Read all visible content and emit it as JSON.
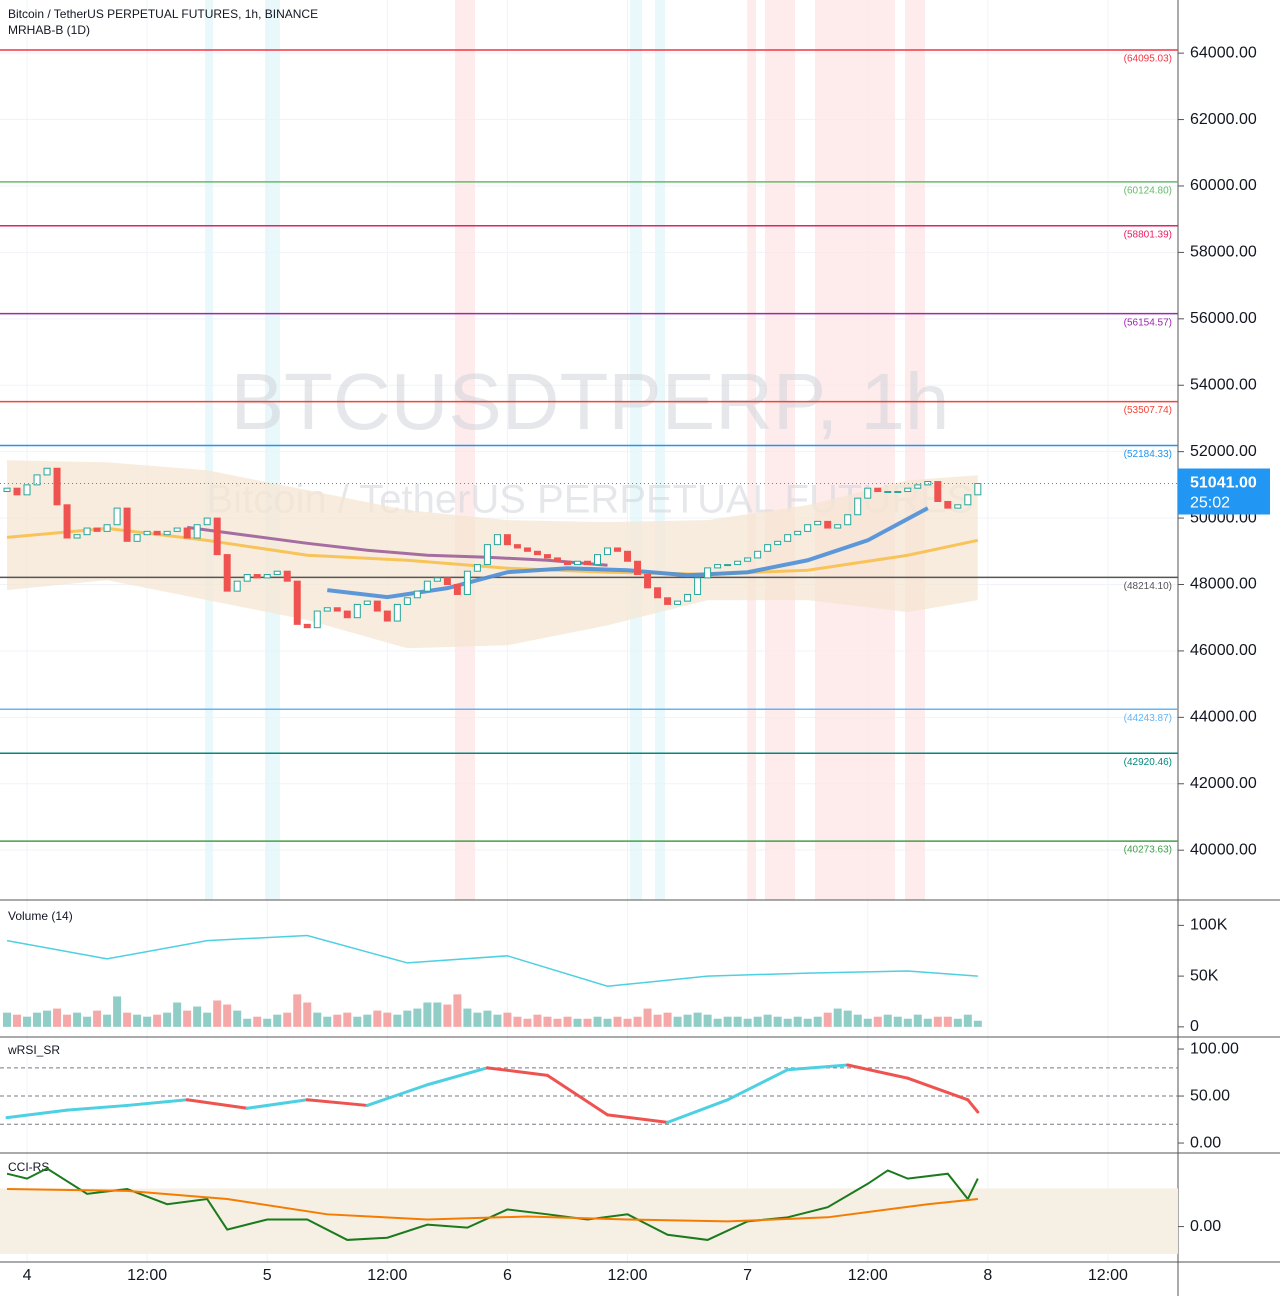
{
  "chart_data": [
    {
      "type": "candlestick",
      "title": "Bitcoin / TetherUS PERPETUAL FUTURES, 1h, BINANCE",
      "subtitle": "MRHAB-B (1D)",
      "watermark": "BTCUSDTPERP, 1h",
      "watermark_subtitle": "Bitcoin / TetherUS PERPETUAL FUTURES",
      "up_color": "#26a69a",
      "down_color": "#ef5350",
      "x": [
        -2,
        -1,
        0,
        1,
        2,
        3,
        4,
        5,
        6,
        7,
        8,
        9,
        10,
        11,
        12,
        13,
        14,
        15,
        16,
        17,
        18,
        19,
        20,
        21,
        22,
        23,
        24,
        25,
        26,
        27,
        28,
        29,
        30,
        31,
        32,
        33,
        34,
        35,
        36,
        37,
        38,
        39,
        40,
        41,
        42,
        43,
        44,
        45,
        46,
        47,
        48,
        49,
        50,
        51,
        52,
        53,
        54,
        55,
        56,
        57,
        58,
        59,
        60,
        61,
        62,
        63,
        64,
        65,
        66,
        67,
        68,
        69,
        70,
        71,
        72,
        73,
        74,
        75,
        76,
        77,
        78,
        79,
        80,
        81,
        82,
        83,
        84,
        85,
        86,
        87,
        88,
        89,
        90,
        91,
        92,
        93,
        94,
        95
      ],
      "open": [
        50800,
        50900,
        50700,
        51000,
        51300,
        51500,
        50400,
        49400,
        49500,
        49700,
        49600,
        49800,
        50300,
        49300,
        49500,
        49600,
        49500,
        49600,
        49700,
        49400,
        49800,
        50000,
        48900,
        47800,
        48100,
        48300,
        48200,
        48300,
        48400,
        48100,
        46800,
        46700,
        47200,
        47300,
        47200,
        47000,
        47400,
        47500,
        47200,
        46900,
        47400,
        47600,
        47800,
        48100,
        48200,
        48000,
        47700,
        48400,
        48600,
        49200,
        49500,
        49200,
        49100,
        49000,
        48900,
        48800,
        48700,
        48600,
        48700,
        48600,
        48900,
        49100,
        49000,
        48700,
        48300,
        47900,
        47600,
        47400,
        47500,
        47700,
        48200,
        48500,
        48600,
        48600,
        48700,
        48800,
        49000,
        49200,
        49300,
        49500,
        49600,
        49800,
        49900,
        49700,
        49800,
        50100,
        50600,
        50900,
        50800,
        50800,
        50800,
        50900,
        51000,
        51100,
        50500,
        50300,
        50400,
        50700
      ],
      "close": [
        50900,
        50700,
        51000,
        51300,
        51500,
        50400,
        49400,
        49500,
        49700,
        49600,
        49800,
        50300,
        49300,
        49500,
        49600,
        49500,
        49600,
        49700,
        49400,
        49800,
        50000,
        48900,
        47800,
        48100,
        48300,
        48200,
        48300,
        48400,
        48100,
        46800,
        46700,
        47200,
        47300,
        47200,
        47000,
        47400,
        47500,
        47200,
        46900,
        47400,
        47600,
        47800,
        48100,
        48200,
        48000,
        47700,
        48400,
        48600,
        49200,
        49500,
        49200,
        49100,
        49000,
        48900,
        48800,
        48700,
        48600,
        48700,
        48600,
        48900,
        49100,
        49000,
        48700,
        48300,
        47900,
        47600,
        47400,
        47500,
        47700,
        48200,
        48500,
        48600,
        48600,
        48700,
        48800,
        49000,
        49200,
        49300,
        49500,
        49600,
        49800,
        49900,
        49700,
        49800,
        50100,
        50600,
        50900,
        50800,
        50800,
        50800,
        50900,
        51000,
        51100,
        50500,
        50300,
        50400,
        50700,
        51041
      ],
      "xlim": [
        -2.7,
        115
      ],
      "xticks": [
        {
          "value": 0,
          "label": "4"
        },
        {
          "value": 12,
          "label": "12:00"
        },
        {
          "value": 24,
          "label": "5"
        },
        {
          "value": 36,
          "label": "12:00"
        },
        {
          "value": 48,
          "label": "6"
        },
        {
          "value": 60,
          "label": "12:00"
        },
        {
          "value": 72,
          "label": "7"
        },
        {
          "value": 84,
          "label": "12:00"
        },
        {
          "value": 96,
          "label": "8"
        },
        {
          "value": 108,
          "label": "12:00"
        }
      ],
      "ylim": [
        38500,
        65600
      ],
      "yticks": [
        {
          "value": 40000,
          "label": "40000.00"
        },
        {
          "value": 42000,
          "label": "42000.00"
        },
        {
          "value": 44000,
          "label": "44000.00"
        },
        {
          "value": 46000,
          "label": "46000.00"
        },
        {
          "value": 48000,
          "label": "48000.00"
        },
        {
          "value": 50000,
          "label": "50000.00"
        },
        {
          "value": 52000,
          "label": "52000.00"
        },
        {
          "value": 54000,
          "label": "54000.00"
        },
        {
          "value": 56000,
          "label": "56000.00"
        },
        {
          "value": 58000,
          "label": "58000.00"
        },
        {
          "value": 60000,
          "label": "60000.00"
        },
        {
          "value": 62000,
          "label": "62000.00"
        },
        {
          "value": 64000,
          "label": "64000.00"
        }
      ],
      "grid": true,
      "levels": {
        "values": [
          64095.03,
          60124.8,
          58801.39,
          56154.57,
          53507.74,
          52184.33,
          48214.1,
          44243.87,
          42920.46,
          40273.63
        ],
        "value_labels": [
          "(64095.03)",
          "(60124.80)",
          "(58801.39)",
          "(56154.57)",
          "(53507.74)",
          "(52184.33)",
          "(48214.10)",
          "(44243.87)",
          "(42920.46)",
          "(40273.63)"
        ],
        "colors": [
          "#f23645",
          "#66bb6a",
          "#e91e63",
          "#9c27b0",
          "#f44336",
          "#2196f3",
          "#555555",
          "#64b5f6",
          "#00897b",
          "#43a047"
        ]
      },
      "band": {
        "color": "#f5e6d3",
        "x": [
          -2,
          8,
          18,
          28,
          38,
          48,
          58,
          68,
          78,
          88,
          95
        ],
        "upper": [
          51740,
          51680,
          51440,
          50840,
          50240,
          49940,
          49880,
          49940,
          50390,
          51140,
          51290
        ],
        "lower": [
          47830,
          48130,
          47530,
          46930,
          46080,
          46170,
          46770,
          47530,
          47530,
          47170,
          47530
        ]
      },
      "overlays": [
        {
          "color": "#f7c04a",
          "width": 3,
          "x": [
            -2,
            8,
            18,
            28,
            38,
            48,
            58,
            68,
            78,
            88,
            95
          ],
          "values": [
            49420,
            49690,
            49330,
            48880,
            48730,
            48490,
            48370,
            48310,
            48430,
            48880,
            49330
          ]
        },
        {
          "color": "#9c5f9a",
          "width": 3,
          "x": [
            16,
            22,
            28,
            34,
            40,
            46,
            52,
            58
          ],
          "values": [
            49720,
            49480,
            49240,
            49030,
            48880,
            48820,
            48730,
            48580
          ]
        },
        {
          "color": "#4a8fd8",
          "width": 4,
          "x": [
            30,
            36,
            42,
            48,
            54,
            60,
            66,
            72,
            78,
            84,
            90
          ],
          "values": [
            47830,
            47620,
            47890,
            48370,
            48490,
            48430,
            48280,
            48370,
            48730,
            49330,
            50300
          ]
        }
      ],
      "last": {
        "values": [
          51041
        ],
        "value_labels": [
          "51041.00"
        ],
        "countdown": "25:02",
        "color": "#2196f3"
      }
    },
    {
      "type": "bar",
      "title": "Volume (14)",
      "values": [
        14000,
        12000,
        10000,
        14000,
        16000,
        18000,
        12000,
        14000,
        10000,
        16000,
        12000,
        30000,
        14000,
        12000,
        10000,
        12000,
        14000,
        24000,
        16000,
        20000,
        14000,
        26000,
        22000,
        16000,
        8000,
        10000,
        8000,
        12000,
        14000,
        32000,
        24000,
        14000,
        10000,
        12000,
        14000,
        10000,
        12000,
        16000,
        14000,
        12000,
        16000,
        18000,
        24000,
        24000,
        22000,
        32000,
        18000,
        14000,
        16000,
        12000,
        14000,
        10000,
        8000,
        12000,
        10000,
        8000,
        10000,
        8000,
        8000,
        10000,
        8000,
        10000,
        8000,
        10000,
        18000,
        12000,
        14000,
        10000,
        12000,
        14000,
        12000,
        8000,
        10000,
        10000,
        8000,
        10000,
        12000,
        10000,
        8000,
        10000,
        8000,
        10000,
        14000,
        18000,
        16000,
        12000,
        8000,
        10000,
        12000,
        10000,
        8000,
        12000,
        8000,
        10000,
        10000,
        8000,
        12000,
        6000
      ],
      "up_color": "#8fcdc6",
      "down_color": "#f5a8a8",
      "ylim": [
        -10000,
        125000
      ],
      "yticks": [
        0,
        {
          "value": 50000,
          "label": "50K"
        },
        {
          "value": 100000,
          "label": "100K"
        }
      ],
      "series": [
        {
          "color": "#4dd0e1",
          "x": [
            -2,
            8,
            18,
            28,
            38,
            48,
            58,
            68,
            78,
            88,
            95
          ],
          "values": [
            85000,
            67000,
            85000,
            90000,
            63000,
            70000,
            40000,
            50000,
            53000,
            55000,
            50000
          ]
        }
      ]
    },
    {
      "type": "line",
      "title": "wRSI_SR",
      "ylim": [
        -10.6,
        112.8
      ],
      "yticks": [
        {
          "value": 0,
          "label": "0.00"
        },
        {
          "value": 50,
          "label": "50.00"
        },
        {
          "value": 100,
          "label": "100.00"
        }
      ],
      "hlines": [
        20,
        50,
        80
      ],
      "series": [
        {
          "up_color": "#4dd0e1",
          "down_color": "#ef5350",
          "x": [
            -2,
            4,
            10,
            16,
            22,
            28,
            34,
            40,
            46,
            52,
            58,
            64,
            70,
            76,
            82,
            88,
            94,
            95
          ],
          "values": [
            27,
            35,
            40,
            46,
            37,
            46,
            40,
            62,
            80,
            72,
            30,
            22,
            46,
            78,
            83,
            69,
            46,
            33
          ]
        }
      ]
    },
    {
      "type": "line",
      "title": "CCI-RS",
      "ylim": [
        -130,
        270
      ],
      "yticks": [
        {
          "value": 0,
          "label": "0.00"
        }
      ],
      "band": {
        "color": "#f5efe4",
        "range": [
          -100,
          140
        ]
      },
      "series": [
        {
          "color": "#1b7a1b",
          "x": [
            -2,
            0,
            2,
            6,
            10,
            14,
            18,
            20,
            24,
            28,
            32,
            36,
            40,
            44,
            48,
            52,
            56,
            60,
            64,
            68,
            72,
            76,
            80,
            84,
            86,
            88,
            92,
            94,
            95
          ],
          "values": [
            194,
            176,
            213,
            120,
            138,
            82,
            101,
            -11,
            26,
            26,
            -49,
            -41,
            7,
            -4,
            63,
            45,
            26,
            45,
            -30,
            -49,
            19,
            34,
            71,
            157,
            206,
            176,
            194,
            101,
            176
          ]
        },
        {
          "color": "#f57c00",
          "x": [
            -2,
            10,
            20,
            30,
            40,
            50,
            60,
            70,
            80,
            90,
            95
          ],
          "values": [
            138,
            131,
            101,
            45,
            26,
            37,
            26,
            19,
            34,
            82,
            101
          ]
        }
      ]
    }
  ]
}
